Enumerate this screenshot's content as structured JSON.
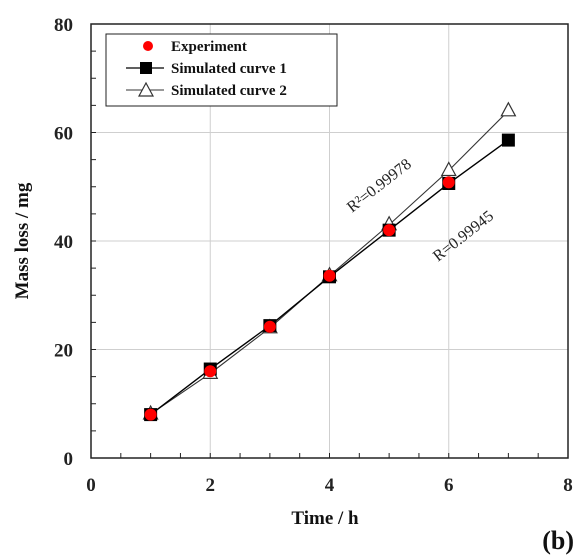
{
  "chart_data": {
    "type": "line",
    "xlabel": "Time / h",
    "ylabel": "Mass loss / mg",
    "xlim": [
      0,
      8
    ],
    "ylim": [
      0,
      80
    ],
    "xticks": [
      "0",
      "2",
      "4",
      "6",
      "8"
    ],
    "yticks": [
      "0",
      "20",
      "40",
      "60",
      "80"
    ],
    "grid": true,
    "legend_position": "top-left",
    "panel_label": "(b)",
    "series": [
      {
        "name": "Experiment",
        "marker": "circle",
        "color": "#ff0000",
        "x": [
          1,
          2,
          3,
          4,
          5,
          6
        ],
        "y": [
          8.0,
          16.0,
          24.2,
          33.6,
          42.0,
          50.8
        ]
      },
      {
        "name": "Simulated curve 1",
        "marker": "square",
        "color": "#000000",
        "x": [
          1,
          2,
          3,
          4,
          5,
          6,
          7
        ],
        "y": [
          8.0,
          16.4,
          24.4,
          33.4,
          42.0,
          50.6,
          58.6
        ]
      },
      {
        "name": "Simulated curve 2",
        "marker": "triangle-open",
        "color": "#333333",
        "x": [
          1,
          2,
          3,
          4,
          5,
          6,
          7
        ],
        "y": [
          8.1,
          15.6,
          24.0,
          33.6,
          43.0,
          53.0,
          64.0
        ]
      }
    ],
    "annotations": [
      {
        "text": "R²=0.99978"
      },
      {
        "text": "R=0.99945"
      }
    ]
  }
}
